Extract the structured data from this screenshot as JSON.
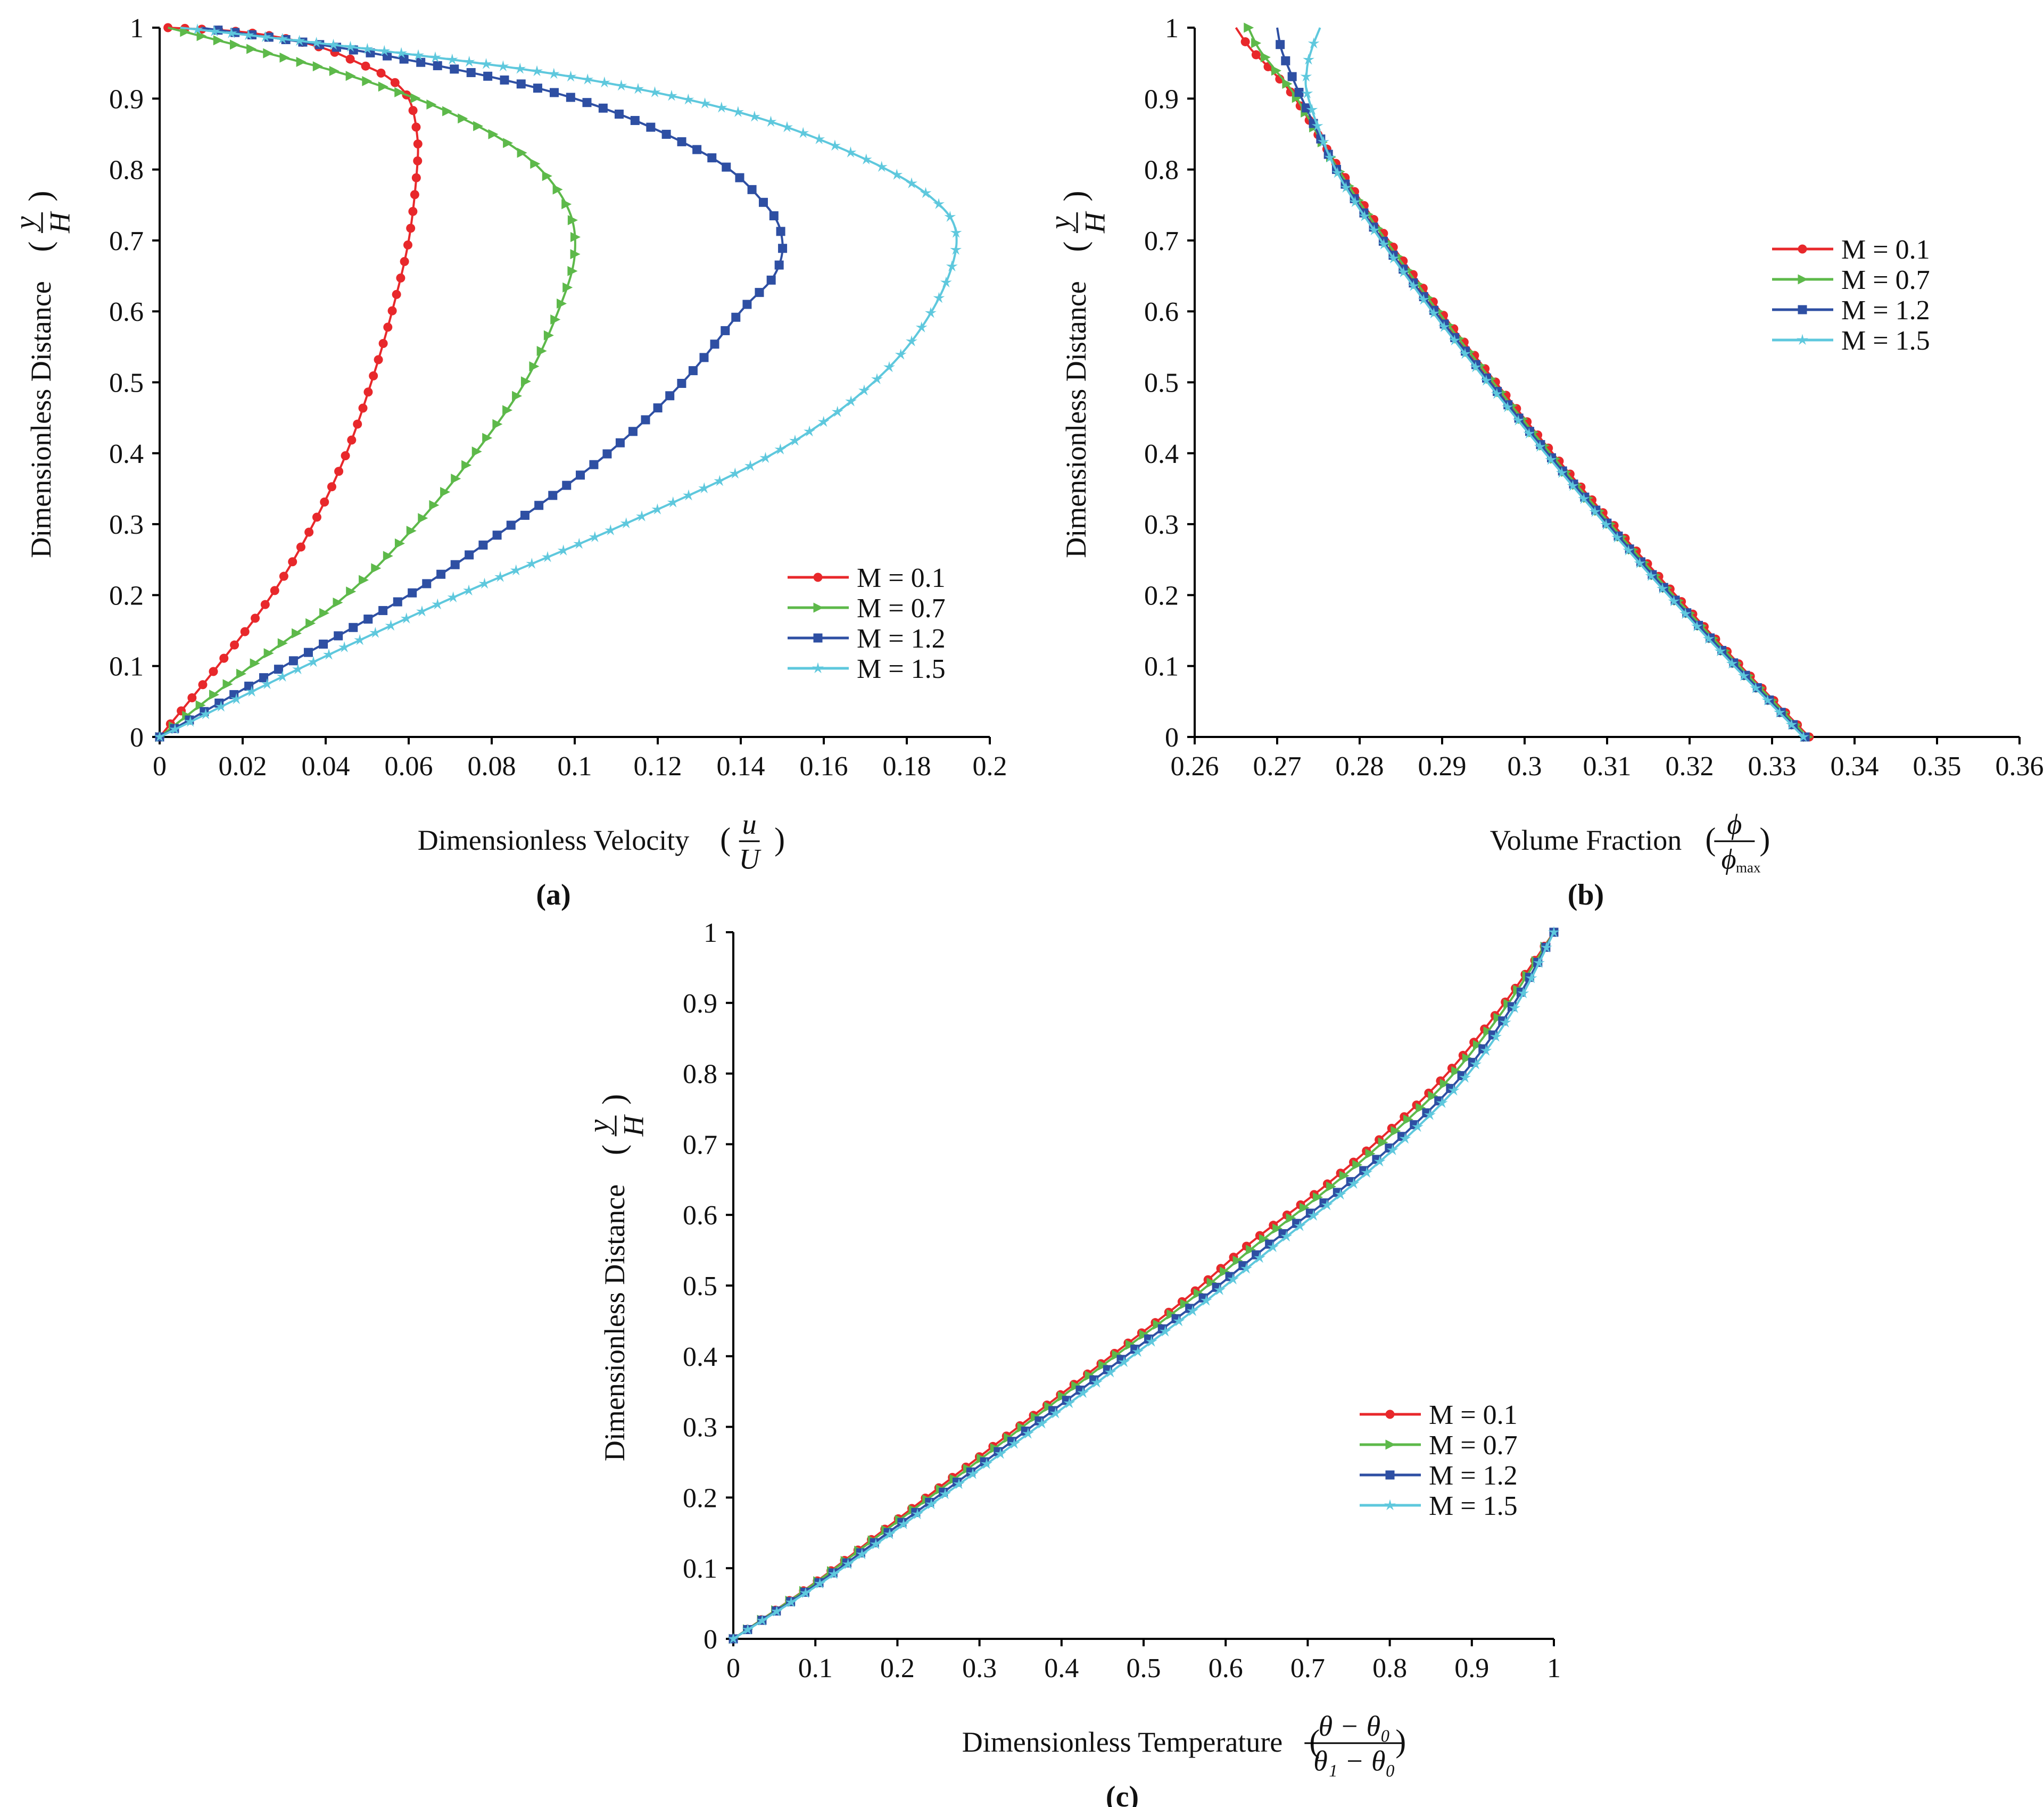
{
  "colors": {
    "M01": "#e8282b",
    "M07": "#5db94a",
    "M12": "#2e4fa3",
    "M15": "#5ec8dd"
  },
  "chart_data": [
    {
      "id": "a",
      "type": "line",
      "panel_label": "(a)",
      "xlabel": "Dimensionless Velocity",
      "xlabel_frac": {
        "num": "u",
        "den": "U"
      },
      "ylabel": "Dimensionless Distance",
      "ylabel_frac": {
        "num": "y",
        "den": "H"
      },
      "xlim": [
        0,
        0.2
      ],
      "ylim": [
        0,
        1
      ],
      "xticks": [
        0,
        0.02,
        0.04,
        0.06,
        0.08,
        0.1,
        0.12,
        0.14,
        0.16,
        0.18,
        0.2
      ],
      "xtick_labels": [
        "0",
        "0.02",
        "0.04",
        "0.06",
        "0.08",
        "0.1",
        "0.12",
        "0.14",
        "0.16",
        "0.18",
        "0.2"
      ],
      "yticks": [
        0,
        0.1,
        0.2,
        0.3,
        0.4,
        0.5,
        0.6,
        0.7,
        0.8,
        0.9,
        1
      ],
      "ytick_labels": [
        "0",
        "0.1",
        "0.2",
        "0.3",
        "0.4",
        "0.5",
        "0.6",
        "0.7",
        "0.8",
        "0.9",
        "1"
      ],
      "legend_position": "bottom-right",
      "series": [
        {
          "name": "M = 0.1",
          "marker": "circle",
          "color": "#e8282b",
          "x": [
            0,
            0.014,
            0.027,
            0.037,
            0.045,
            0.051,
            0.056,
            0.06,
            0.062,
            0.062,
            0.06,
            0.055,
            0.048,
            0.04,
            0.03,
            0.018,
            0.002
          ],
          "y": [
            0,
            0.1,
            0.2,
            0.3,
            0.4,
            0.5,
            0.6,
            0.7,
            0.8,
            0.85,
            0.9,
            0.93,
            0.95,
            0.97,
            0.985,
            0.995,
            1
          ]
        },
        {
          "name": "M = 0.7",
          "marker": "triangle-right",
          "color": "#5db94a",
          "x": [
            0,
            0.022,
            0.045,
            0.062,
            0.076,
            0.088,
            0.096,
            0.1,
            0.098,
            0.088,
            0.07,
            0.047,
            0.022,
            0.002
          ],
          "y": [
            0,
            0.1,
            0.2,
            0.3,
            0.4,
            0.5,
            0.6,
            0.68,
            0.75,
            0.82,
            0.88,
            0.93,
            0.97,
            1
          ]
        },
        {
          "name": "M = 1.2",
          "marker": "square",
          "color": "#2e4fa3",
          "x": [
            0,
            0.03,
            0.06,
            0.085,
            0.108,
            0.126,
            0.14,
            0.148,
            0.15,
            0.146,
            0.132,
            0.1,
            0.055,
            0.01
          ],
          "y": [
            0,
            0.1,
            0.2,
            0.3,
            0.4,
            0.5,
            0.6,
            0.65,
            0.7,
            0.75,
            0.82,
            0.9,
            0.96,
            1
          ]
        },
        {
          "name": "M = 1.5",
          "marker": "star",
          "color": "#5ec8dd",
          "x": [
            0,
            0.035,
            0.072,
            0.112,
            0.148,
            0.172,
            0.186,
            0.192,
            0.186,
            0.168,
            0.14,
            0.1,
            0.05,
            0.005
          ],
          "y": [
            0,
            0.1,
            0.2,
            0.3,
            0.4,
            0.5,
            0.6,
            0.7,
            0.76,
            0.82,
            0.88,
            0.93,
            0.97,
            1
          ]
        }
      ]
    },
    {
      "id": "b",
      "type": "line",
      "panel_label": "(b)",
      "xlabel": "Volume Fraction",
      "xlabel_frac": {
        "num": "ϕ",
        "den": "ϕ",
        "den_sub": "max"
      },
      "ylabel": "Dimensionless Distance",
      "ylabel_frac": {
        "num": "y",
        "den": "H"
      },
      "xlim": [
        0.26,
        0.36
      ],
      "ylim": [
        0,
        1
      ],
      "xticks": [
        0.26,
        0.27,
        0.28,
        0.29,
        0.3,
        0.31,
        0.32,
        0.33,
        0.34,
        0.35,
        0.36
      ],
      "xtick_labels": [
        "0.26",
        "0.27",
        "0.28",
        "0.29",
        "0.3",
        "0.31",
        "0.32",
        "0.33",
        "0.34",
        "0.35",
        "0.36"
      ],
      "yticks": [
        0,
        0.1,
        0.2,
        0.3,
        0.4,
        0.5,
        0.6,
        0.7,
        0.8,
        0.9,
        1
      ],
      "ytick_labels": [
        "0",
        "0.1",
        "0.2",
        "0.3",
        "0.4",
        "0.5",
        "0.6",
        "0.7",
        "0.8",
        "0.9",
        "1"
      ],
      "legend_position": "middle-right",
      "series": [
        {
          "name": "M = 0.1",
          "marker": "circle",
          "color": "#e8282b",
          "x": [
            0.3345,
            0.3262,
            0.3183,
            0.3107,
            0.3034,
            0.2965,
            0.2898,
            0.2835,
            0.2776,
            0.2722,
            0.2693,
            0.2668,
            0.265
          ],
          "y": [
            0,
            0.1,
            0.2,
            0.3,
            0.4,
            0.5,
            0.6,
            0.7,
            0.8,
            0.9,
            0.94,
            0.97,
            1
          ]
        },
        {
          "name": "M = 0.7",
          "marker": "triangle-right",
          "color": "#5db94a",
          "x": [
            0.3343,
            0.326,
            0.318,
            0.3104,
            0.3031,
            0.2962,
            0.2895,
            0.2832,
            0.2774,
            0.2724,
            0.2698,
            0.2678,
            0.2665
          ],
          "y": [
            0,
            0.1,
            0.2,
            0.3,
            0.4,
            0.5,
            0.6,
            0.7,
            0.8,
            0.9,
            0.94,
            0.97,
            1
          ]
        },
        {
          "name": "M = 1.2",
          "marker": "square",
          "color": "#2e4fa3",
          "x": [
            0.334,
            0.3257,
            0.3177,
            0.3101,
            0.3028,
            0.2958,
            0.2891,
            0.2828,
            0.2772,
            0.273,
            0.2715,
            0.2705,
            0.27
          ],
          "y": [
            0,
            0.1,
            0.2,
            0.3,
            0.4,
            0.5,
            0.6,
            0.7,
            0.8,
            0.9,
            0.94,
            0.97,
            1
          ]
        },
        {
          "name": "M = 1.5",
          "marker": "star",
          "color": "#5ec8dd",
          "x": [
            0.3338,
            0.3254,
            0.3174,
            0.3098,
            0.3025,
            0.2955,
            0.2888,
            0.2826,
            0.2771,
            0.2738,
            0.2736,
            0.2742,
            0.2752
          ],
          "y": [
            0,
            0.1,
            0.2,
            0.3,
            0.4,
            0.5,
            0.6,
            0.7,
            0.8,
            0.9,
            0.94,
            0.97,
            1
          ]
        }
      ]
    },
    {
      "id": "c",
      "type": "line",
      "panel_label": "(c)",
      "xlabel": "Dimensionless Temperature",
      "xlabel_frac": {
        "num": "θ − θ₀",
        "den": "θ₁ − θ₀"
      },
      "ylabel": "Dimensionless Distance",
      "ylabel_frac": {
        "num": "y",
        "den": "H"
      },
      "xlim": [
        0,
        1
      ],
      "ylim": [
        0,
        1
      ],
      "xticks": [
        0,
        0.1,
        0.2,
        0.3,
        0.4,
        0.5,
        0.6,
        0.7,
        0.8,
        0.9,
        1
      ],
      "xtick_labels": [
        "0",
        "0.1",
        "0.2",
        "0.3",
        "0.4",
        "0.5",
        "0.6",
        "0.7",
        "0.8",
        "0.9",
        "1"
      ],
      "yticks": [
        0,
        0.1,
        0.2,
        0.3,
        0.4,
        0.5,
        0.6,
        0.7,
        0.8,
        0.9,
        1
      ],
      "ytick_labels": [
        "0",
        "0.1",
        "0.2",
        "0.3",
        "0.4",
        "0.5",
        "0.6",
        "0.7",
        "0.8",
        "0.9",
        "1"
      ],
      "legend_position": "bottom-right",
      "series": [
        {
          "name": "M = 0.1",
          "marker": "circle",
          "color": "#e8282b",
          "x": [
            0,
            0.1,
            0.19,
            0.28,
            0.37,
            0.46,
            0.55,
            0.63,
            0.72,
            0.8,
            0.87,
            0.94,
            1
          ],
          "y": [
            0,
            0.08,
            0.16,
            0.24,
            0.32,
            0.4,
            0.48,
            0.56,
            0.64,
            0.72,
            0.8,
            0.9,
            1
          ]
        },
        {
          "name": "M = 0.7",
          "marker": "triangle-right",
          "color": "#5db94a",
          "x": [
            0,
            0.101,
            0.193,
            0.285,
            0.375,
            0.465,
            0.557,
            0.64,
            0.728,
            0.808,
            0.878,
            0.945,
            1
          ],
          "y": [
            0,
            0.08,
            0.16,
            0.24,
            0.32,
            0.4,
            0.48,
            0.56,
            0.64,
            0.72,
            0.8,
            0.9,
            1
          ]
        },
        {
          "name": "M = 1.2",
          "marker": "square",
          "color": "#2e4fa3",
          "x": [
            0,
            0.105,
            0.2,
            0.294,
            0.386,
            0.478,
            0.57,
            0.655,
            0.745,
            0.823,
            0.89,
            0.952,
            1
          ],
          "y": [
            0,
            0.08,
            0.16,
            0.24,
            0.32,
            0.4,
            0.48,
            0.56,
            0.64,
            0.72,
            0.8,
            0.9,
            1
          ]
        },
        {
          "name": "M = 1.5",
          "marker": "star",
          "color": "#5ec8dd",
          "x": [
            0,
            0.108,
            0.205,
            0.3,
            0.394,
            0.486,
            0.578,
            0.664,
            0.752,
            0.83,
            0.896,
            0.956,
            1
          ],
          "y": [
            0,
            0.08,
            0.16,
            0.24,
            0.32,
            0.4,
            0.48,
            0.56,
            0.64,
            0.72,
            0.8,
            0.9,
            1
          ]
        }
      ]
    }
  ]
}
